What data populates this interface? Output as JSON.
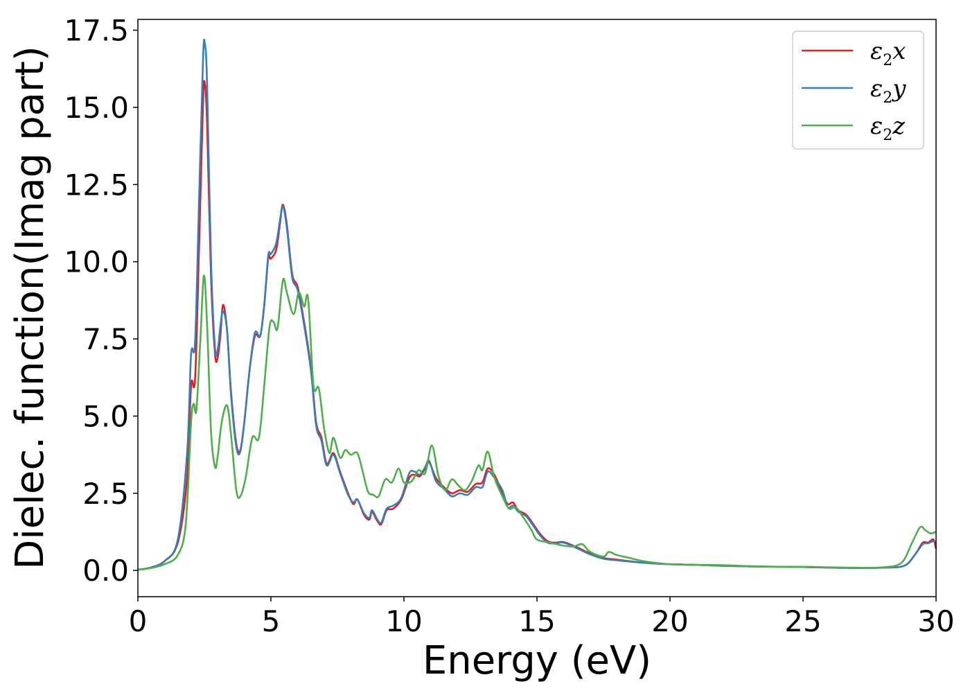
{
  "chart_data": {
    "type": "line",
    "xlabel": "Energy (eV)",
    "ylabel": "Dielec. function(Imag part)",
    "xlim": [
      0,
      30
    ],
    "ylim": [
      -0.85,
      17.85
    ],
    "xticks": [
      0,
      5,
      10,
      15,
      20,
      25,
      30
    ],
    "yticks": [
      0.0,
      2.5,
      5.0,
      7.5,
      10.0,
      12.5,
      15.0,
      17.5
    ],
    "grid": false,
    "legend_position": "top-right",
    "series": [
      {
        "name": "ε2x",
        "symbol": "ε",
        "subscript": "2",
        "suffix": "x",
        "color": "#e41a1c",
        "points": [
          [
            0,
            0.02
          ],
          [
            0.5,
            0.1
          ],
          [
            1.0,
            0.3
          ],
          [
            1.5,
            0.9
          ],
          [
            1.85,
            3.0
          ],
          [
            2.0,
            6.0
          ],
          [
            2.15,
            6.2
          ],
          [
            2.3,
            10.5
          ],
          [
            2.45,
            15.2
          ],
          [
            2.52,
            15.75
          ],
          [
            2.6,
            14.5
          ],
          [
            2.75,
            9.5
          ],
          [
            2.9,
            7.0
          ],
          [
            3.0,
            6.9
          ],
          [
            3.1,
            7.6
          ],
          [
            3.2,
            8.6
          ],
          [
            3.35,
            7.8
          ],
          [
            3.5,
            5.8
          ],
          [
            3.7,
            4.1
          ],
          [
            3.85,
            3.9
          ],
          [
            4.0,
            4.8
          ],
          [
            4.2,
            6.5
          ],
          [
            4.4,
            7.6
          ],
          [
            4.6,
            7.6
          ],
          [
            4.75,
            8.6
          ],
          [
            4.9,
            10.1
          ],
          [
            5.0,
            10.1
          ],
          [
            5.2,
            10.4
          ],
          [
            5.35,
            11.3
          ],
          [
            5.45,
            11.85
          ],
          [
            5.6,
            11.2
          ],
          [
            5.8,
            9.6
          ],
          [
            6.0,
            9.2
          ],
          [
            6.2,
            8.3
          ],
          [
            6.5,
            6.6
          ],
          [
            6.7,
            4.8
          ],
          [
            6.9,
            4.3
          ],
          [
            7.1,
            3.45
          ],
          [
            7.35,
            3.8
          ],
          [
            7.6,
            3.2
          ],
          [
            7.9,
            2.5
          ],
          [
            8.1,
            2.15
          ],
          [
            8.25,
            2.3
          ],
          [
            8.5,
            1.8
          ],
          [
            8.7,
            1.65
          ],
          [
            8.8,
            1.9
          ],
          [
            9.0,
            1.6
          ],
          [
            9.15,
            1.5
          ],
          [
            9.35,
            1.95
          ],
          [
            9.6,
            2.0
          ],
          [
            9.9,
            2.3
          ],
          [
            10.2,
            3.0
          ],
          [
            10.4,
            3.1
          ],
          [
            10.6,
            3.05
          ],
          [
            10.8,
            3.3
          ],
          [
            10.95,
            3.5
          ],
          [
            11.2,
            3.0
          ],
          [
            11.5,
            2.7
          ],
          [
            11.8,
            2.5
          ],
          [
            12.1,
            2.6
          ],
          [
            12.4,
            2.55
          ],
          [
            12.7,
            2.8
          ],
          [
            12.95,
            2.85
          ],
          [
            13.15,
            3.3
          ],
          [
            13.4,
            3.1
          ],
          [
            13.7,
            2.5
          ],
          [
            13.9,
            2.15
          ],
          [
            14.1,
            2.2
          ],
          [
            14.3,
            1.95
          ],
          [
            14.6,
            1.8
          ],
          [
            14.9,
            1.45
          ],
          [
            15.1,
            1.2
          ],
          [
            15.4,
            0.95
          ],
          [
            15.7,
            0.9
          ],
          [
            16.0,
            0.92
          ],
          [
            16.5,
            0.75
          ],
          [
            17.0,
            0.55
          ],
          [
            17.5,
            0.4
          ],
          [
            18.0,
            0.35
          ],
          [
            19.0,
            0.25
          ],
          [
            20.0,
            0.2
          ],
          [
            21.0,
            0.18
          ],
          [
            22.0,
            0.15
          ],
          [
            23.0,
            0.13
          ],
          [
            24.0,
            0.12
          ],
          [
            25.0,
            0.11
          ],
          [
            26.0,
            0.09
          ],
          [
            27.0,
            0.08
          ],
          [
            28.0,
            0.09
          ],
          [
            28.8,
            0.15
          ],
          [
            29.2,
            0.5
          ],
          [
            29.5,
            0.9
          ],
          [
            29.7,
            0.9
          ],
          [
            29.9,
            1.0
          ],
          [
            30.0,
            0.7
          ]
        ]
      },
      {
        "name": "ε2y",
        "symbol": "ε",
        "subscript": "2",
        "suffix": "y",
        "color": "#377eb8",
        "points": [
          [
            0,
            0.02
          ],
          [
            0.5,
            0.1
          ],
          [
            1.0,
            0.3
          ],
          [
            1.5,
            1.0
          ],
          [
            1.85,
            3.8
          ],
          [
            2.0,
            7.0
          ],
          [
            2.15,
            7.4
          ],
          [
            2.3,
            12.0
          ],
          [
            2.45,
            16.6
          ],
          [
            2.52,
            17.05
          ],
          [
            2.6,
            15.8
          ],
          [
            2.75,
            10.0
          ],
          [
            2.9,
            7.2
          ],
          [
            3.0,
            7.15
          ],
          [
            3.1,
            7.9
          ],
          [
            3.2,
            8.4
          ],
          [
            3.35,
            7.8
          ],
          [
            3.5,
            5.7
          ],
          [
            3.7,
            4.0
          ],
          [
            3.85,
            3.85
          ],
          [
            4.0,
            4.8
          ],
          [
            4.2,
            6.5
          ],
          [
            4.4,
            7.7
          ],
          [
            4.6,
            7.6
          ],
          [
            4.75,
            8.6
          ],
          [
            4.9,
            10.2
          ],
          [
            5.0,
            10.25
          ],
          [
            5.2,
            10.6
          ],
          [
            5.35,
            11.4
          ],
          [
            5.45,
            11.8
          ],
          [
            5.6,
            11.1
          ],
          [
            5.8,
            9.5
          ],
          [
            6.0,
            9.1
          ],
          [
            6.2,
            8.2
          ],
          [
            6.5,
            6.5
          ],
          [
            6.7,
            4.7
          ],
          [
            6.9,
            4.2
          ],
          [
            7.1,
            3.4
          ],
          [
            7.35,
            3.75
          ],
          [
            7.6,
            3.15
          ],
          [
            7.9,
            2.45
          ],
          [
            8.1,
            2.2
          ],
          [
            8.25,
            2.3
          ],
          [
            8.5,
            1.85
          ],
          [
            8.7,
            1.7
          ],
          [
            8.8,
            1.95
          ],
          [
            9.0,
            1.65
          ],
          [
            9.15,
            1.55
          ],
          [
            9.35,
            2.0
          ],
          [
            9.6,
            2.1
          ],
          [
            9.9,
            2.35
          ],
          [
            10.2,
            3.15
          ],
          [
            10.4,
            3.2
          ],
          [
            10.6,
            3.1
          ],
          [
            10.8,
            3.35
          ],
          [
            10.95,
            3.55
          ],
          [
            11.2,
            2.9
          ],
          [
            11.5,
            2.65
          ],
          [
            11.8,
            2.4
          ],
          [
            12.1,
            2.5
          ],
          [
            12.4,
            2.45
          ],
          [
            12.7,
            2.7
          ],
          [
            12.95,
            2.7
          ],
          [
            13.15,
            3.2
          ],
          [
            13.4,
            3.0
          ],
          [
            13.7,
            2.6
          ],
          [
            13.9,
            2.05
          ],
          [
            14.1,
            2.1
          ],
          [
            14.3,
            1.9
          ],
          [
            14.6,
            1.75
          ],
          [
            14.9,
            1.4
          ],
          [
            15.1,
            1.15
          ],
          [
            15.4,
            0.9
          ],
          [
            15.7,
            0.88
          ],
          [
            16.0,
            0.9
          ],
          [
            16.5,
            0.72
          ],
          [
            17.0,
            0.52
          ],
          [
            17.5,
            0.38
          ],
          [
            18.0,
            0.33
          ],
          [
            19.0,
            0.25
          ],
          [
            20.0,
            0.2
          ],
          [
            21.0,
            0.18
          ],
          [
            22.0,
            0.15
          ],
          [
            23.0,
            0.13
          ],
          [
            24.0,
            0.12
          ],
          [
            25.0,
            0.11
          ],
          [
            26.0,
            0.09
          ],
          [
            27.0,
            0.08
          ],
          [
            28.0,
            0.09
          ],
          [
            28.8,
            0.15
          ],
          [
            29.2,
            0.5
          ],
          [
            29.5,
            0.85
          ],
          [
            29.7,
            0.88
          ],
          [
            29.9,
            0.95
          ],
          [
            30.0,
            0.9
          ]
        ]
      },
      {
        "name": "ε2z",
        "symbol": "ε",
        "subscript": "2",
        "suffix": "z",
        "color": "#4daf4a",
        "points": [
          [
            0,
            0.02
          ],
          [
            0.5,
            0.08
          ],
          [
            1.0,
            0.2
          ],
          [
            1.5,
            0.5
          ],
          [
            1.8,
            1.5
          ],
          [
            2.0,
            4.8
          ],
          [
            2.1,
            5.4
          ],
          [
            2.2,
            5.2
          ],
          [
            2.35,
            7.5
          ],
          [
            2.48,
            9.55
          ],
          [
            2.6,
            8.0
          ],
          [
            2.75,
            4.5
          ],
          [
            2.9,
            3.35
          ],
          [
            3.0,
            3.7
          ],
          [
            3.15,
            4.8
          ],
          [
            3.35,
            5.35
          ],
          [
            3.5,
            4.4
          ],
          [
            3.7,
            2.6
          ],
          [
            3.85,
            2.4
          ],
          [
            4.05,
            3.0
          ],
          [
            4.3,
            4.3
          ],
          [
            4.55,
            4.3
          ],
          [
            4.75,
            6.0
          ],
          [
            4.95,
            7.9
          ],
          [
            5.1,
            8.05
          ],
          [
            5.25,
            7.85
          ],
          [
            5.45,
            9.4
          ],
          [
            5.6,
            9.0
          ],
          [
            5.85,
            8.3
          ],
          [
            6.05,
            9.0
          ],
          [
            6.25,
            8.55
          ],
          [
            6.4,
            8.8
          ],
          [
            6.6,
            6.0
          ],
          [
            6.8,
            5.9
          ],
          [
            7.0,
            4.6
          ],
          [
            7.2,
            3.8
          ],
          [
            7.35,
            4.3
          ],
          [
            7.6,
            3.65
          ],
          [
            7.8,
            3.9
          ],
          [
            8.0,
            3.75
          ],
          [
            8.25,
            3.8
          ],
          [
            8.45,
            3.2
          ],
          [
            8.65,
            2.55
          ],
          [
            8.85,
            2.45
          ],
          [
            9.05,
            2.4
          ],
          [
            9.3,
            2.95
          ],
          [
            9.55,
            2.85
          ],
          [
            9.8,
            3.3
          ],
          [
            10.0,
            2.85
          ],
          [
            10.3,
            2.9
          ],
          [
            10.55,
            3.25
          ],
          [
            10.8,
            3.15
          ],
          [
            11.05,
            4.05
          ],
          [
            11.3,
            3.05
          ],
          [
            11.55,
            2.6
          ],
          [
            11.8,
            2.95
          ],
          [
            12.05,
            2.75
          ],
          [
            12.3,
            2.6
          ],
          [
            12.55,
            2.9
          ],
          [
            12.8,
            3.4
          ],
          [
            12.95,
            3.25
          ],
          [
            13.15,
            3.85
          ],
          [
            13.4,
            3.0
          ],
          [
            13.7,
            2.4
          ],
          [
            13.95,
            2.0
          ],
          [
            14.2,
            2.05
          ],
          [
            14.5,
            1.7
          ],
          [
            14.8,
            1.3
          ],
          [
            15.0,
            1.0
          ],
          [
            15.5,
            0.9
          ],
          [
            16.0,
            0.8
          ],
          [
            16.4,
            0.78
          ],
          [
            16.7,
            0.85
          ],
          [
            17.0,
            0.6
          ],
          [
            17.5,
            0.45
          ],
          [
            17.7,
            0.6
          ],
          [
            18.0,
            0.5
          ],
          [
            18.5,
            0.4
          ],
          [
            19.0,
            0.3
          ],
          [
            20.0,
            0.2
          ],
          [
            21.0,
            0.18
          ],
          [
            22.0,
            0.17
          ],
          [
            23.0,
            0.14
          ],
          [
            24.0,
            0.12
          ],
          [
            25.0,
            0.12
          ],
          [
            26.0,
            0.1
          ],
          [
            27.0,
            0.09
          ],
          [
            28.0,
            0.1
          ],
          [
            28.7,
            0.25
          ],
          [
            29.1,
            0.9
          ],
          [
            29.4,
            1.4
          ],
          [
            29.6,
            1.3
          ],
          [
            29.8,
            1.2
          ],
          [
            30.0,
            1.25
          ]
        ]
      }
    ]
  }
}
